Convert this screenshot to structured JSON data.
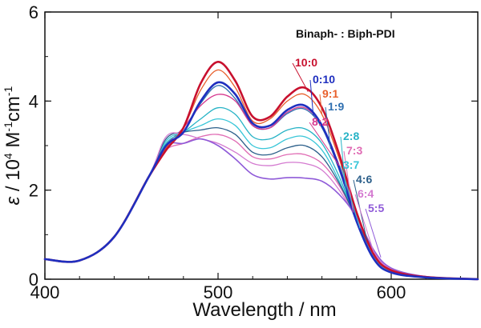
{
  "chart_data": {
    "type": "line",
    "title": "",
    "annotation_title": "Binaph- : Biph-PDI",
    "xlabel": "Wavelength / nm",
    "ylabel": {
      "symbol": "ε",
      "sep": " / 10",
      "exp1": "4",
      "mid": " M",
      "exp2": "-1",
      "mid2": "cm",
      "exp3": "-1"
    },
    "xlim": [
      400,
      650
    ],
    "ylim": [
      0,
      6
    ],
    "xticks": [
      400,
      500,
      600
    ],
    "yticks": [
      0,
      2,
      4,
      6
    ],
    "grid": false,
    "legend": "right",
    "series": [
      {
        "name": "10:0",
        "color": "#c8102e",
        "width": 2.6,
        "x": [
          400,
          420,
          440,
          460,
          470,
          480,
          490,
          500,
          510,
          520,
          530,
          540,
          550,
          560,
          570,
          580,
          590,
          600,
          620,
          650
        ],
        "y": [
          0.45,
          0.42,
          0.95,
          2.3,
          2.9,
          3.4,
          4.4,
          4.88,
          4.45,
          3.65,
          3.65,
          4.1,
          4.3,
          3.85,
          2.8,
          1.5,
          0.55,
          0.2,
          0.05,
          0.0
        ]
      },
      {
        "name": "0:10",
        "color": "#1f2fbf",
        "width": 2.6,
        "x": [
          400,
          420,
          440,
          460,
          470,
          480,
          490,
          500,
          510,
          520,
          530,
          540,
          550,
          560,
          570,
          580,
          590,
          600,
          620,
          650
        ],
        "y": [
          0.45,
          0.42,
          0.95,
          2.3,
          3.0,
          3.3,
          4.0,
          4.42,
          4.15,
          3.5,
          3.45,
          3.8,
          3.9,
          3.45,
          2.5,
          1.3,
          0.45,
          0.15,
          0.04,
          0.0
        ]
      },
      {
        "name": "9:1",
        "color": "#e8602c",
        "width": 1.3,
        "x": [
          400,
          420,
          440,
          460,
          470,
          480,
          490,
          500,
          510,
          520,
          530,
          540,
          550,
          560,
          570,
          580,
          590,
          600,
          620,
          650
        ],
        "y": [
          0.45,
          0.42,
          0.95,
          2.3,
          2.95,
          3.4,
          4.25,
          4.7,
          4.3,
          3.55,
          3.6,
          4.0,
          4.15,
          3.7,
          2.7,
          1.45,
          0.5,
          0.18,
          0.05,
          0.0
        ]
      },
      {
        "name": "1:9",
        "color": "#2f6fb0",
        "width": 1.3,
        "x": [
          400,
          420,
          440,
          460,
          470,
          480,
          490,
          500,
          510,
          520,
          530,
          540,
          550,
          560,
          570,
          580,
          590,
          600,
          620,
          650
        ],
        "y": [
          0.45,
          0.42,
          0.95,
          2.3,
          3.0,
          3.3,
          3.95,
          4.35,
          4.05,
          3.45,
          3.4,
          3.72,
          3.82,
          3.4,
          2.45,
          1.3,
          0.45,
          0.15,
          0.04,
          0.0
        ]
      },
      {
        "name": "8:2",
        "color": "#d6388e",
        "width": 1.3,
        "x": [
          400,
          420,
          440,
          460,
          470,
          480,
          490,
          500,
          510,
          520,
          530,
          540,
          550,
          560,
          570,
          580,
          590,
          600,
          620,
          650
        ],
        "y": [
          0.45,
          0.42,
          0.95,
          2.3,
          3.0,
          3.4,
          3.9,
          4.15,
          4.0,
          3.45,
          3.4,
          3.75,
          3.85,
          3.45,
          2.55,
          1.4,
          0.5,
          0.18,
          0.05,
          0.0
        ]
      },
      {
        "name": "2:8",
        "color": "#27b3c6",
        "width": 1.3,
        "x": [
          400,
          420,
          440,
          460,
          470,
          480,
          490,
          500,
          510,
          520,
          530,
          540,
          550,
          560,
          570,
          580,
          590,
          600,
          620,
          650
        ],
        "y": [
          0.45,
          0.42,
          0.95,
          2.3,
          3.05,
          3.3,
          3.6,
          3.85,
          3.7,
          3.2,
          3.15,
          3.35,
          3.38,
          3.05,
          2.3,
          1.3,
          0.5,
          0.18,
          0.05,
          0.0
        ]
      },
      {
        "name": "7:3",
        "color": "#e06cb4",
        "width": 1.3,
        "x": [
          400,
          420,
          440,
          460,
          470,
          480,
          490,
          500,
          510,
          520,
          530,
          540,
          550,
          560,
          570,
          580,
          590,
          600,
          620,
          650
        ],
        "y": [
          0.45,
          0.42,
          0.95,
          2.3,
          2.9,
          3.05,
          3.2,
          3.25,
          3.1,
          2.75,
          2.7,
          2.8,
          2.8,
          2.6,
          2.1,
          1.35,
          0.6,
          0.22,
          0.06,
          0.0
        ]
      },
      {
        "name": "3:7",
        "color": "#38c6d8",
        "width": 1.3,
        "x": [
          400,
          420,
          440,
          460,
          470,
          480,
          490,
          500,
          510,
          520,
          530,
          540,
          550,
          560,
          570,
          580,
          590,
          600,
          620,
          650
        ],
        "y": [
          0.45,
          0.42,
          0.95,
          2.3,
          3.1,
          3.3,
          3.45,
          3.6,
          3.45,
          3.0,
          2.95,
          3.15,
          3.2,
          2.9,
          2.2,
          1.3,
          0.5,
          0.18,
          0.05,
          0.0
        ]
      },
      {
        "name": "4:6",
        "color": "#2c5f8a",
        "width": 1.3,
        "x": [
          400,
          420,
          440,
          460,
          470,
          480,
          490,
          500,
          510,
          520,
          530,
          540,
          550,
          560,
          570,
          580,
          590,
          600,
          620,
          650
        ],
        "y": [
          0.45,
          0.42,
          0.95,
          2.3,
          3.15,
          3.3,
          3.35,
          3.4,
          3.25,
          2.85,
          2.8,
          2.95,
          3.0,
          2.75,
          2.15,
          1.35,
          0.55,
          0.2,
          0.05,
          0.0
        ]
      },
      {
        "name": "6:4",
        "color": "#d47ad0",
        "width": 1.3,
        "x": [
          400,
          420,
          440,
          460,
          470,
          480,
          490,
          500,
          510,
          520,
          530,
          540,
          550,
          560,
          570,
          580,
          590,
          600,
          620,
          650
        ],
        "y": [
          0.45,
          0.42,
          0.95,
          2.3,
          3.2,
          3.25,
          3.15,
          3.05,
          2.85,
          2.6,
          2.55,
          2.62,
          2.6,
          2.45,
          2.0,
          1.35,
          0.6,
          0.22,
          0.06,
          0.0
        ]
      },
      {
        "name": "5:5",
        "color": "#8f5ad8",
        "width": 1.6,
        "x": [
          400,
          420,
          440,
          460,
          470,
          480,
          490,
          500,
          510,
          520,
          530,
          540,
          550,
          560,
          570,
          580,
          590,
          600,
          620,
          650
        ],
        "y": [
          0.45,
          0.42,
          0.95,
          2.3,
          3.0,
          3.05,
          3.15,
          3.0,
          2.7,
          2.35,
          2.25,
          2.28,
          2.27,
          2.2,
          1.9,
          1.4,
          0.65,
          0.25,
          0.06,
          0.0
        ]
      }
    ]
  }
}
